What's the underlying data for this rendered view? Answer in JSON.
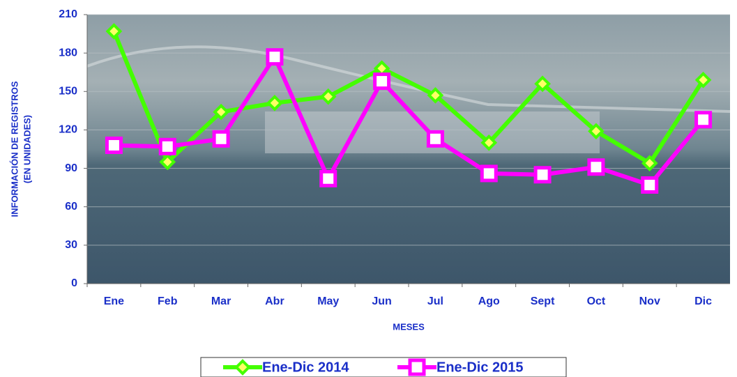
{
  "chart_data": {
    "type": "line",
    "ylabel": [
      "INFORMACIÓN DE REGISTROS",
      "(EN UNIDADES)"
    ],
    "xlabel": "MESES",
    "categories": [
      "Ene",
      "Feb",
      "Mar",
      "Abr",
      "May",
      "Jun",
      "Jul",
      "Ago",
      "Sept",
      "Oct",
      "Nov",
      "Dic"
    ],
    "series": [
      {
        "name": "Ene-Dic 2014",
        "color": "#44ff00",
        "marker": "diamond",
        "values": [
          197,
          95,
          134,
          141,
          146,
          168,
          147,
          110,
          156,
          119,
          94,
          159
        ]
      },
      {
        "name": "Ene-Dic 2015",
        "color": "#ff00ff",
        "marker": "square",
        "values": [
          108,
          107,
          113,
          177,
          82,
          158,
          113,
          86,
          85,
          91,
          77,
          128
        ]
      }
    ],
    "ylim": [
      0,
      210
    ],
    "yticks": [
      0,
      30,
      60,
      90,
      120,
      150,
      180,
      210
    ],
    "grid": true
  }
}
